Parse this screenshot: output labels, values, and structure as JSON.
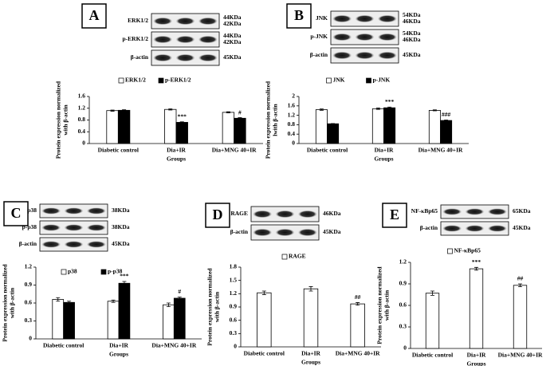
{
  "chart_data": [
    {
      "type": "bar",
      "panel": "A",
      "blot": [
        {
          "label": "ERK1/2",
          "sizes": [
            "44KDa",
            "42KDa"
          ]
        },
        {
          "label": "p-ERK1/2",
          "sizes": [
            "44KDa",
            "42KDa"
          ]
        },
        {
          "label": "β-actin",
          "sizes": [
            "45KDa"
          ]
        }
      ],
      "y_label": [
        "Protein expression normalized",
        "with β-actin"
      ],
      "x_label": "Groups",
      "categories": [
        "Diabetic control",
        "Dia+IR",
        "Dia+MNG 40+IR"
      ],
      "series": [
        {
          "name": "ERK1/2",
          "color": "#ffffff",
          "values": [
            1.12,
            1.16,
            1.06
          ],
          "errors": [
            0.02,
            0.02,
            0.02
          ],
          "significance": [
            null,
            null,
            null
          ]
        },
        {
          "name": "p-ERK1/2",
          "color": "#000000",
          "values": [
            1.13,
            0.72,
            0.86
          ],
          "errors": [
            0.02,
            0.02,
            0.02
          ],
          "significance": [
            null,
            "***",
            "#"
          ]
        }
      ],
      "ylim": [
        0,
        1.6
      ],
      "yticks": [
        0,
        0.4,
        0.8,
        1.2,
        1.6
      ]
    },
    {
      "type": "bar",
      "panel": "B",
      "blot": [
        {
          "label": "JNK",
          "sizes": [
            "54KDa",
            "46KDa"
          ]
        },
        {
          "label": "p-JNK",
          "sizes": [
            "54KDa",
            "46KDa"
          ]
        },
        {
          "label": "β-actin",
          "sizes": [
            "45KDa"
          ]
        }
      ],
      "y_label": [
        "Protein expression normalized",
        "lwith β-actin"
      ],
      "x_label": "Groups",
      "categories": [
        "Diabetic control",
        "Dia+IR",
        "Dia+MNG 40+IR"
      ],
      "series": [
        {
          "name": "JNK",
          "color": "#ffffff",
          "values": [
            1.44,
            1.48,
            1.41
          ],
          "errors": [
            0.03,
            0.03,
            0.02
          ],
          "significance": [
            null,
            null,
            null
          ]
        },
        {
          "name": "p-JNK",
          "color": "#000000",
          "values": [
            0.84,
            1.52,
            0.98
          ],
          "errors": [
            0.01,
            0.03,
            0.02
          ],
          "significance": [
            null,
            "***",
            "###"
          ]
        }
      ],
      "ylim": [
        0,
        2
      ],
      "yticks": [
        0,
        0.4,
        0.8,
        1.2,
        1.6,
        2
      ]
    },
    {
      "type": "bar",
      "panel": "C",
      "blot": [
        {
          "label": "p38",
          "sizes": [
            "38KDa"
          ]
        },
        {
          "label": "p-p38",
          "sizes": [
            "38KDa"
          ]
        },
        {
          "label": "β-actin",
          "sizes": [
            "45KDa"
          ]
        }
      ],
      "y_label": [
        "Protein expression normalized",
        "with β-actin"
      ],
      "x_label": "Groups",
      "categories": [
        "Diabetic control",
        "Dia+IR",
        "Dia+MNG 40+IR"
      ],
      "series": [
        {
          "name": "p38",
          "color": "#ffffff",
          "values": [
            0.66,
            0.63,
            0.57
          ],
          "errors": [
            0.03,
            0.02,
            0.03
          ],
          "significance": [
            null,
            null,
            null
          ]
        },
        {
          "name": "p-p38",
          "color": "#000000",
          "values": [
            0.61,
            0.93,
            0.68
          ],
          "errors": [
            0.02,
            0.03,
            0.02
          ],
          "significance": [
            null,
            "***",
            "#"
          ]
        }
      ],
      "ylim": [
        0,
        1.2
      ],
      "yticks": [
        0,
        0.3,
        0.6,
        0.9,
        1.2
      ]
    },
    {
      "type": "bar",
      "panel": "D",
      "blot": [
        {
          "label": "RAGE",
          "sizes": [
            "46KDa"
          ]
        },
        {
          "label": "β-actin",
          "sizes": [
            "45KDa"
          ]
        }
      ],
      "y_label": [
        "Protein expression normalized",
        "with β-actin"
      ],
      "x_label": "Groups",
      "categories": [
        "Diabetic control",
        "Dia+IR",
        "Dia+MNG 40+IR"
      ],
      "series": [
        {
          "name": "RAGE",
          "color": "#ffffff",
          "values": [
            1.22,
            1.31,
            0.97
          ],
          "errors": [
            0.04,
            0.05,
            0.03
          ],
          "significance": [
            null,
            null,
            "##"
          ]
        }
      ],
      "ylim": [
        0,
        1.8
      ],
      "yticks": [
        0,
        0.3,
        0.6,
        0.9,
        1.2,
        1.5,
        1.8
      ]
    },
    {
      "type": "bar",
      "panel": "E",
      "blot": [
        {
          "label": "NF-κBp65",
          "sizes": [
            "65KDa"
          ]
        },
        {
          "label": "β-actin",
          "sizes": [
            "45KDa"
          ]
        }
      ],
      "y_label": [
        "Protein expression normalized",
        "with β-actin"
      ],
      "x_label": "Groups",
      "categories": [
        "Diabetic control",
        "Dia+IR",
        "Dia+MNG 40+IR"
      ],
      "series": [
        {
          "name": "NF-κBp65",
          "color": "#ffffff",
          "values": [
            0.77,
            1.11,
            0.88
          ],
          "errors": [
            0.03,
            0.02,
            0.02
          ],
          "significance": [
            null,
            "***",
            "##"
          ]
        }
      ],
      "ylim": [
        0,
        1.2
      ],
      "yticks": [
        0,
        0.3,
        0.6,
        0.9,
        1.2
      ]
    }
  ]
}
